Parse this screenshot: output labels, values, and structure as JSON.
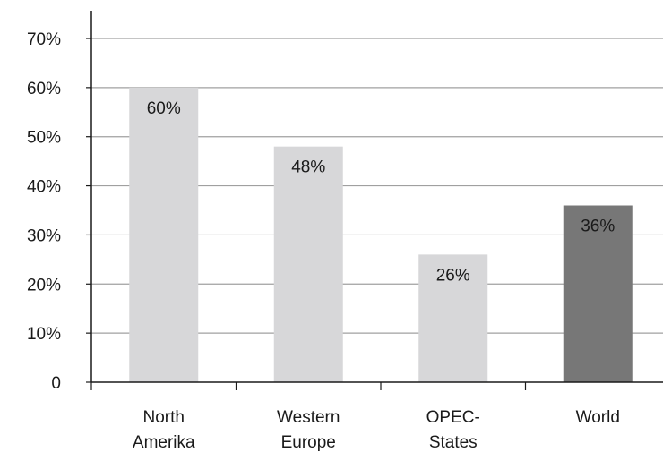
{
  "chart_data": {
    "type": "bar",
    "categories": [
      [
        "North",
        "Amerika"
      ],
      [
        "Western",
        "Europe"
      ],
      [
        "OPEC-",
        "States"
      ],
      [
        "World"
      ]
    ],
    "values": [
      60,
      48,
      26,
      36
    ],
    "data_labels": [
      "60%",
      "48%",
      "26%",
      "36%"
    ],
    "ylim": [
      0,
      70
    ],
    "yticks": [
      0,
      10,
      20,
      30,
      40,
      50,
      60,
      70
    ],
    "ytick_labels": [
      "0",
      "10%",
      "20%",
      "30%",
      "40%",
      "50%",
      "60%",
      "70%"
    ],
    "grid": true,
    "colors": {
      "bar_default": "#d7d7d9",
      "bar_highlight": "#777777",
      "grid": "#a0a0a0",
      "axis": "#1a1a1a"
    },
    "highlight_index": 3
  }
}
